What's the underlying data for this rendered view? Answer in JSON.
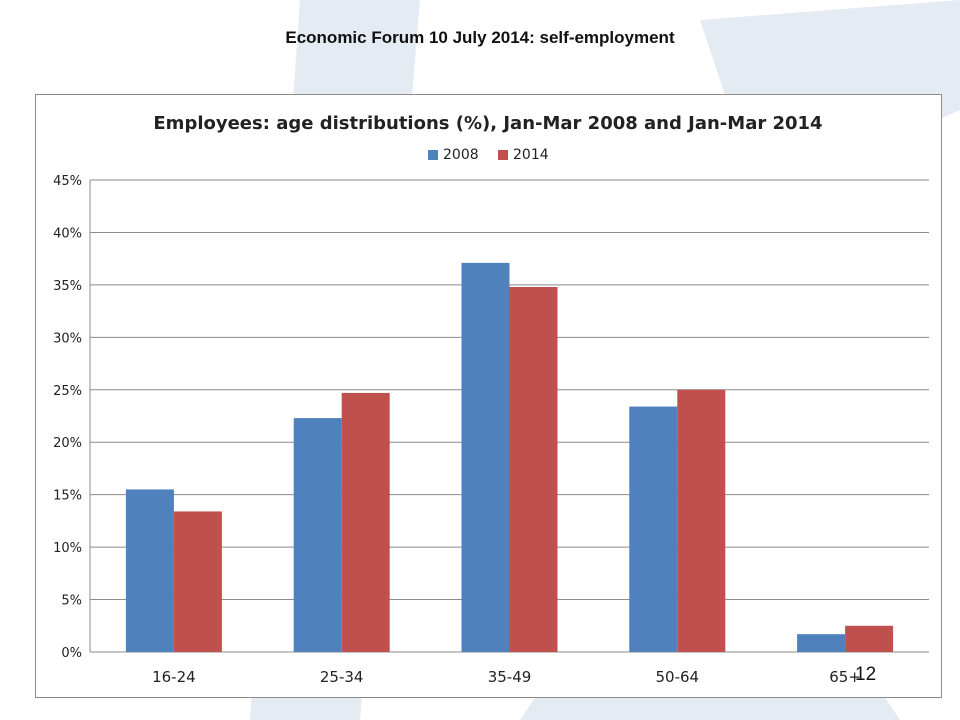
{
  "slide": {
    "title": "Economic Forum 10 July 2014: self-employment",
    "page_number": "12"
  },
  "colors": {
    "series_2008": "#4f81bd",
    "series_2014": "#c0504d",
    "grid": "#8c8c8c",
    "watermark": "#e4ebf2"
  },
  "chart_data": {
    "type": "bar",
    "title": "Employees: age distributions (%), Jan-Mar 2008 and Jan-Mar 2014",
    "xlabel": "",
    "ylabel": "",
    "categories": [
      "16-24",
      "25-34",
      "35-49",
      "50-64",
      "65+"
    ],
    "series": [
      {
        "name": "2008",
        "values": [
          15.5,
          22.3,
          37.1,
          23.4,
          1.7
        ]
      },
      {
        "name": "2014",
        "values": [
          13.4,
          24.7,
          34.8,
          25.0,
          2.5
        ]
      }
    ],
    "ylim": [
      0,
      45
    ],
    "yticks": [
      0,
      5,
      10,
      15,
      20,
      25,
      30,
      35,
      40,
      45
    ],
    "ytick_labels": [
      "0%",
      "5%",
      "10%",
      "15%",
      "20%",
      "25%",
      "30%",
      "35%",
      "40%",
      "45%"
    ],
    "grid": true,
    "legend_position": "top-center"
  }
}
